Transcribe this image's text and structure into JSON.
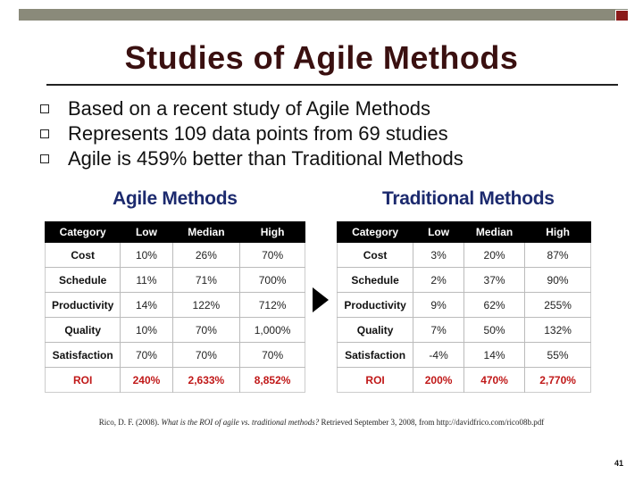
{
  "slide": {
    "title": "Studies of Agile Methods",
    "bullets": [
      "Based on a recent study of Agile Methods",
      "Represents 109 data points from 69 studies",
      "Agile is 459% better than Traditional Methods"
    ],
    "page_number": "41"
  },
  "agile": {
    "heading": "Agile Methods",
    "columns": [
      "Category",
      "Low",
      "Median",
      "High"
    ],
    "rows": [
      [
        "Cost",
        "10%",
        "26%",
        "70%"
      ],
      [
        "Schedule",
        "11%",
        "71%",
        "700%"
      ],
      [
        "Productivity",
        "14%",
        "122%",
        "712%"
      ],
      [
        "Quality",
        "10%",
        "70%",
        "1,000%"
      ],
      [
        "Satisfaction",
        "70%",
        "70%",
        "70%"
      ],
      [
        "ROI",
        "240%",
        "2,633%",
        "8,852%"
      ]
    ]
  },
  "traditional": {
    "heading": "Traditional Methods",
    "columns": [
      "Category",
      "Low",
      "Median",
      "High"
    ],
    "rows": [
      [
        "Cost",
        "3%",
        "20%",
        "87%"
      ],
      [
        "Schedule",
        "2%",
        "37%",
        "90%"
      ],
      [
        "Productivity",
        "9%",
        "62%",
        "255%"
      ],
      [
        "Quality",
        "7%",
        "50%",
        "132%"
      ],
      [
        "Satisfaction",
        "-4%",
        "14%",
        "55%"
      ],
      [
        "ROI",
        "200%",
        "470%",
        "2,770%"
      ]
    ]
  },
  "citation": {
    "before": "Rico, D. F. (2008). ",
    "title": "What is the ROI of agile vs. traditional methods?",
    "after": " Retrieved September 3, 2008, from http://davidfrico.com/rico08b.pdf"
  },
  "colors": {
    "title": "#3a1010",
    "heading": "#1c2a6e",
    "roi": "#c01818",
    "topbar": "#8a8a7a",
    "topbar_accent": "#8b1a1a"
  }
}
